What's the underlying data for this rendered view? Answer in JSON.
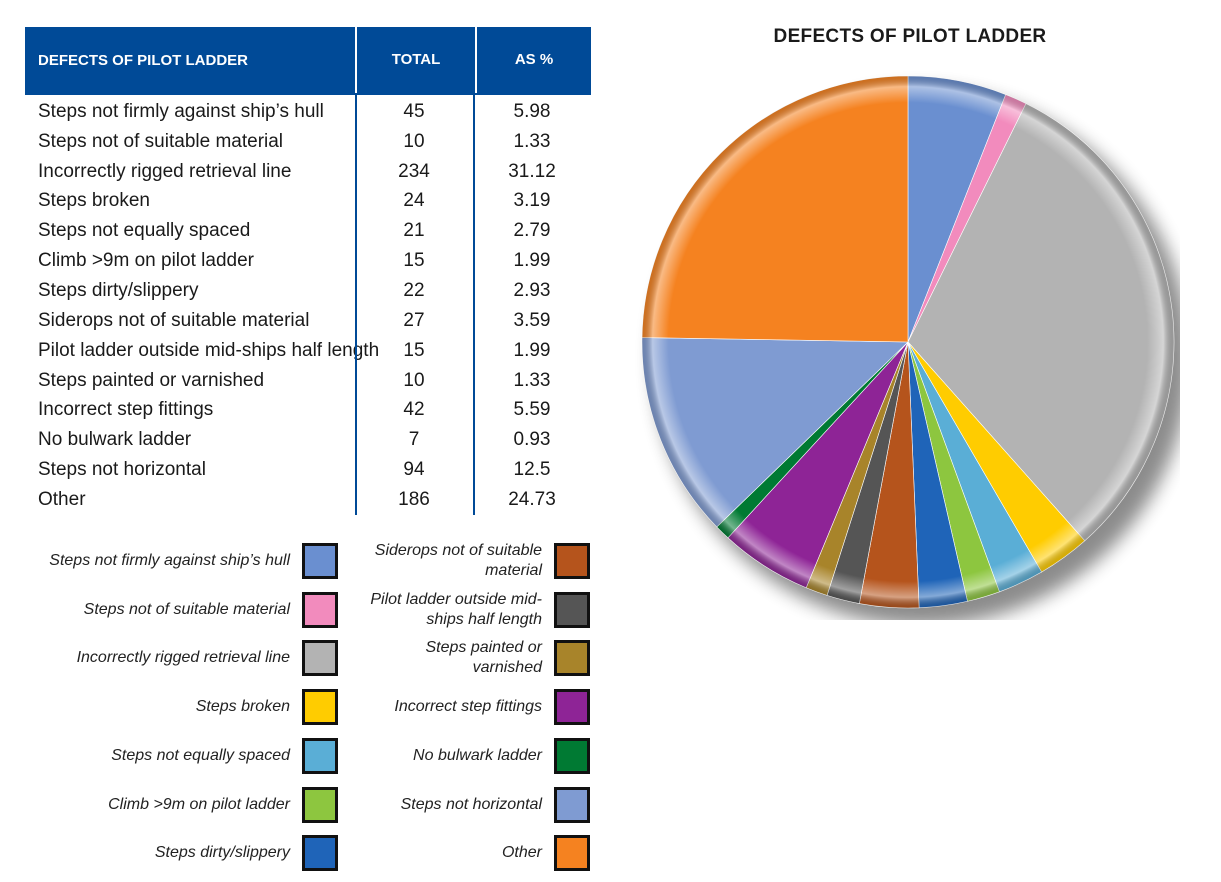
{
  "table": {
    "headers": [
      "DEFECTS OF PILOT LADDER",
      "TOTAL",
      "AS %"
    ],
    "rows": [
      [
        "Steps not firmly against ship’s hull",
        "45",
        "5.98"
      ],
      [
        "Steps not of suitable material",
        "10",
        "1.33"
      ],
      [
        "Incorrectly rigged retrieval line",
        "234",
        "31.12"
      ],
      [
        "Steps broken",
        "24",
        "3.19"
      ],
      [
        "Steps not equally spaced",
        "21",
        "2.79"
      ],
      [
        "Climb >9m on pilot ladder",
        "15",
        "1.99"
      ],
      [
        "Steps dirty/slippery",
        "22",
        "2.93"
      ],
      [
        "Siderops not of suitable material",
        "27",
        "3.59"
      ],
      [
        "Pilot ladder outside mid-ships half length",
        "15",
        "1.99"
      ],
      [
        "Steps painted or varnished",
        "10",
        "1.33"
      ],
      [
        "Incorrect step fittings",
        "42",
        "5.59"
      ],
      [
        "No bulwark ladder",
        "7",
        "0.93"
      ],
      [
        "Steps not horizontal",
        "94",
        "12.5"
      ],
      [
        "Other",
        "186",
        "24.73"
      ]
    ]
  },
  "legend": {
    "left": [
      {
        "label": "Steps not firmly against ship’s hull",
        "color": "#6a8fd0"
      },
      {
        "label": "Steps not of suitable material",
        "color": "#f28bbd"
      },
      {
        "label": "Incorrectly rigged retrieval line",
        "color": "#b3b3b3"
      },
      {
        "label": "Steps broken",
        "color": "#ffcc00"
      },
      {
        "label": "Steps not equally spaced",
        "color": "#5aaed6"
      },
      {
        "label": "Climb >9m on pilot ladder",
        "color": "#8dc63f"
      },
      {
        "label": "Steps dirty/slippery",
        "color": "#1f64b8"
      }
    ],
    "right": [
      {
        "label": "Siderops not of suitable material",
        "color": "#b5541c"
      },
      {
        "label": "Pilot ladder outside mid-ships half length",
        "color": "#555555"
      },
      {
        "label": "Steps painted or varnished",
        "color": "#a8842a"
      },
      {
        "label": "Incorrect step fittings",
        "color": "#8e2496"
      },
      {
        "label": "No bulwark ladder",
        "color": "#007a33"
      },
      {
        "label": "Steps not horizontal",
        "color": "#7f9bd2"
      },
      {
        "label": "Other",
        "color": "#f58220"
      }
    ]
  },
  "chart_data": {
    "type": "pie",
    "title": "DEFECTS OF PILOT LADDER",
    "categories": [
      "Steps not firmly against ship’s hull",
      "Steps not of suitable material",
      "Incorrectly rigged retrieval line",
      "Steps broken",
      "Steps not equally spaced",
      "Climb >9m on pilot ladder",
      "Steps dirty/slippery",
      "Siderops not of suitable material",
      "Pilot ladder outside mid-ships half length",
      "Steps painted or varnished",
      "Incorrect step fittings",
      "No bulwark ladder",
      "Steps not horizontal",
      "Other"
    ],
    "values": [
      45,
      10,
      234,
      24,
      21,
      15,
      22,
      27,
      15,
      10,
      42,
      7,
      94,
      186
    ],
    "percentages": [
      5.98,
      1.33,
      31.12,
      3.19,
      2.79,
      1.99,
      2.93,
      3.59,
      1.99,
      1.33,
      5.59,
      0.93,
      12.5,
      24.73
    ],
    "colors": [
      "#6a8fd0",
      "#f28bbd",
      "#b3b3b3",
      "#ffcc00",
      "#5aaed6",
      "#8dc63f",
      "#1f64b8",
      "#b5541c",
      "#555555",
      "#a8842a",
      "#8e2496",
      "#007a33",
      "#7f9bd2",
      "#f58220"
    ],
    "legend_position": "bottom-left"
  }
}
